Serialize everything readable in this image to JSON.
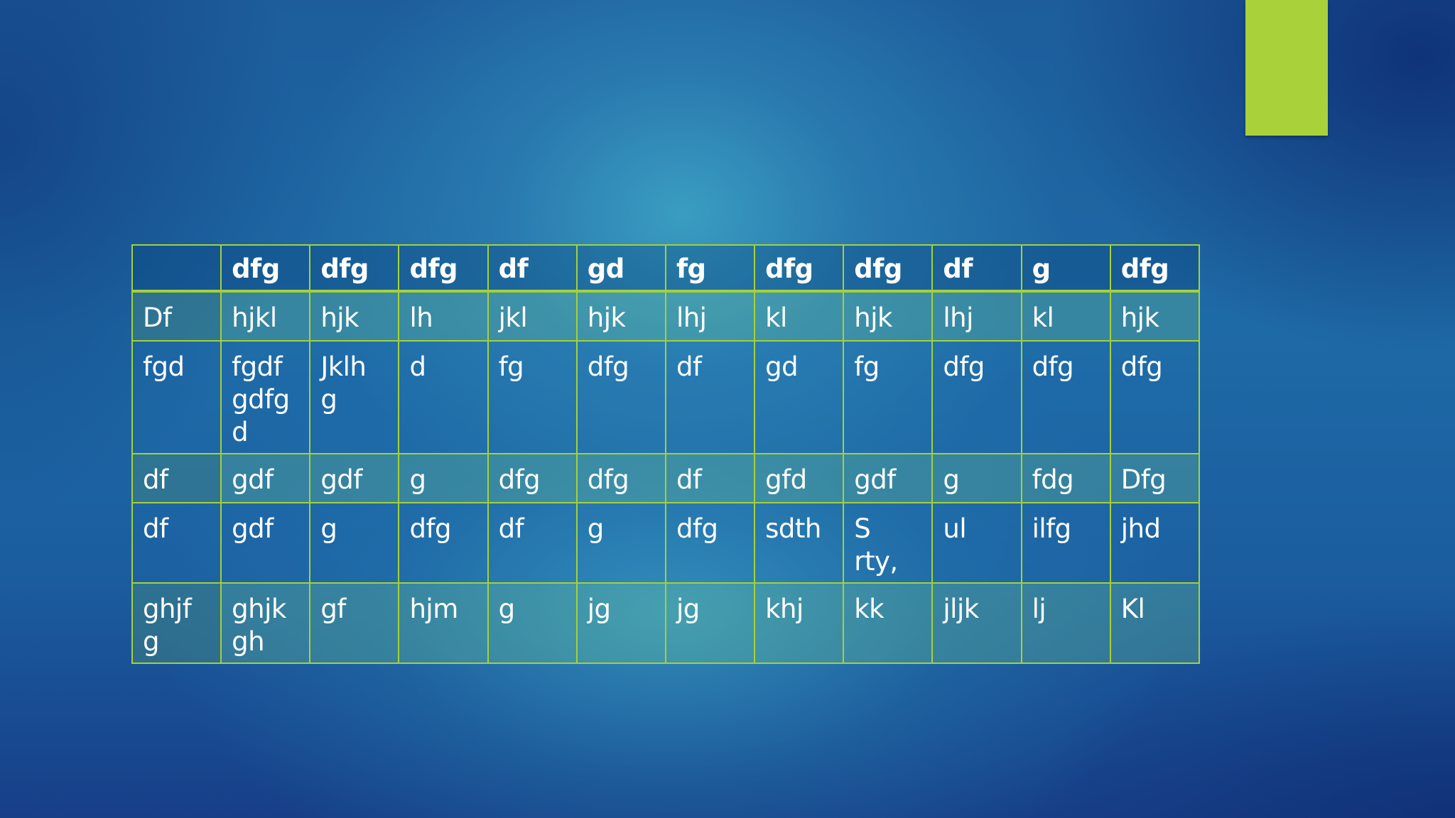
{
  "accent_color": "#a9d13a",
  "table": {
    "headers": [
      "",
      "dfg",
      "dfg",
      "dfg",
      "df",
      "gd",
      "fg",
      "dfg",
      "dfg",
      "df",
      "g",
      "dfg"
    ],
    "rows": [
      [
        "Df",
        "hjkl",
        "hjk",
        "lh",
        "jkl",
        "hjk",
        "lhj",
        "kl",
        "hjk",
        "lhj",
        "kl",
        "hjk"
      ],
      [
        "fgd",
        "fgdf gdfg d",
        "Jklh g",
        "d",
        "fg",
        "dfg",
        "df",
        "gd",
        "fg",
        "dfg",
        "dfg",
        "dfg"
      ],
      [
        "df",
        "gdf",
        "gdf",
        "g",
        "dfg",
        "dfg",
        "df",
        "gfd",
        "gdf",
        "g",
        "fdg",
        "Dfg"
      ],
      [
        "df",
        "gdf",
        "g",
        "dfg",
        "df",
        "g",
        "dfg",
        "sdth",
        "S rty,",
        "ul",
        "ilfg",
        " jhd"
      ],
      [
        "ghjf g",
        "ghjk gh",
        "gf",
        "hjm",
        "g",
        "jg",
        "jg",
        "khj",
        "kk",
        "jljk",
        "lj",
        "Kl"
      ]
    ]
  }
}
